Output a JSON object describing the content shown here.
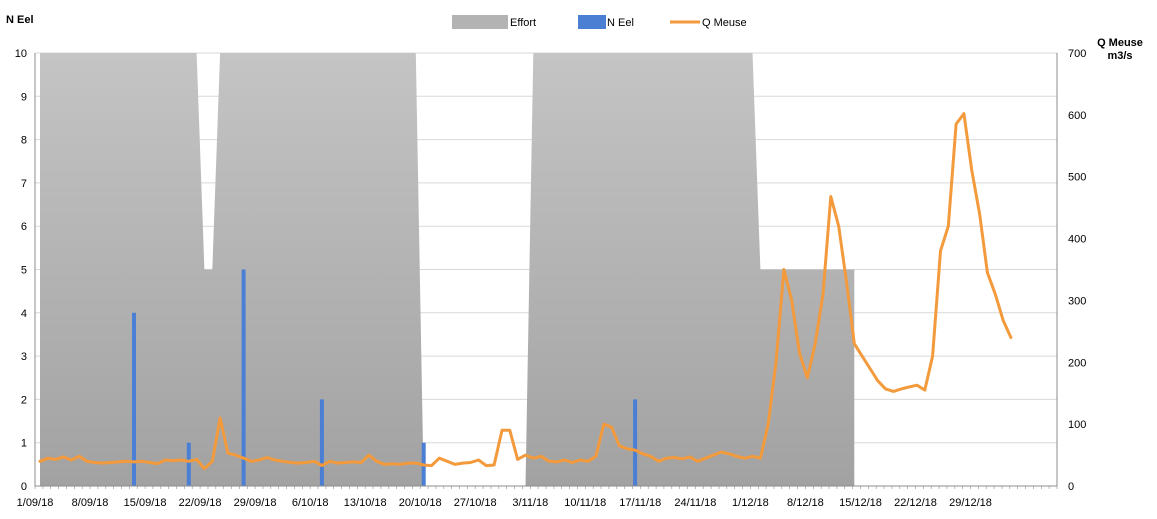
{
  "chart_data": {
    "type": "combo",
    "x_tick_labels": [
      "1/09/18",
      "8/09/18",
      "15/09/18",
      "22/09/18",
      "29/09/18",
      "6/10/18",
      "13/10/18",
      "20/10/18",
      "27/10/18",
      "3/11/18",
      "10/11/18",
      "17/11/18",
      "24/11/18",
      "1/12/18",
      "8/12/18",
      "15/12/18",
      "22/12/18",
      "29/12/18"
    ],
    "x_range": [
      "2018-09-01",
      "2018-12-31"
    ],
    "y_left": {
      "label": "N Eel",
      "range": [
        0,
        10
      ],
      "ticks": [
        0,
        1,
        2,
        3,
        4,
        5,
        6,
        7,
        8,
        9,
        10
      ]
    },
    "y_right": {
      "label_line1": "Q Meuse",
      "label_line2": "m3/s",
      "range": [
        0,
        700
      ],
      "ticks": [
        0,
        100,
        200,
        300,
        400,
        500,
        600,
        700
      ]
    },
    "grid": true,
    "legend": {
      "placement": "top",
      "entries": [
        {
          "name": "Effort",
          "kind": "area",
          "color": "#b3b3b3"
        },
        {
          "name": "N Eel",
          "kind": "bar",
          "color": "#4a7fd4"
        },
        {
          "name": "Q Meuse",
          "kind": "line",
          "color": "#f39a3c"
        }
      ]
    },
    "series": [
      {
        "name": "Effort",
        "type": "area",
        "axis": "left",
        "color": "#b3b3b3",
        "points": [
          [
            "2018-09-01",
            10
          ],
          [
            "2018-09-21",
            10
          ],
          [
            "2018-09-22",
            5
          ],
          [
            "2018-09-23",
            5
          ],
          [
            "2018-09-24",
            10
          ],
          [
            "2018-10-19",
            10
          ],
          [
            "2018-10-20",
            0
          ],
          [
            "2018-11-02",
            0
          ],
          [
            "2018-11-03",
            10
          ],
          [
            "2018-12-01",
            10
          ],
          [
            "2018-12-02",
            5
          ],
          [
            "2018-12-14",
            5
          ],
          [
            "2018-12-14",
            0
          ]
        ]
      },
      {
        "name": "N Eel",
        "type": "bar",
        "axis": "left",
        "color": "#4a7fd4",
        "points": [
          [
            "2018-09-13",
            4
          ],
          [
            "2018-09-20",
            1
          ],
          [
            "2018-09-27",
            5
          ],
          [
            "2018-10-07",
            2
          ],
          [
            "2018-10-20",
            1
          ],
          [
            "2018-11-16",
            2
          ]
        ]
      },
      {
        "name": "Q Meuse",
        "type": "line",
        "axis": "right",
        "color": "#f39a3c",
        "points": [
          [
            "2018-09-01",
            40
          ],
          [
            "2018-09-02",
            45
          ],
          [
            "2018-09-03",
            43
          ],
          [
            "2018-09-04",
            47
          ],
          [
            "2018-09-05",
            42
          ],
          [
            "2018-09-06",
            48
          ],
          [
            "2018-09-07",
            40
          ],
          [
            "2018-09-08",
            38
          ],
          [
            "2018-09-09",
            37
          ],
          [
            "2018-09-10",
            38
          ],
          [
            "2018-09-11",
            39
          ],
          [
            "2018-09-12",
            40
          ],
          [
            "2018-09-13",
            39
          ],
          [
            "2018-09-14",
            40
          ],
          [
            "2018-09-15",
            38
          ],
          [
            "2018-09-16",
            36
          ],
          [
            "2018-09-17",
            42
          ],
          [
            "2018-09-18",
            41
          ],
          [
            "2018-09-19",
            42
          ],
          [
            "2018-09-20",
            40
          ],
          [
            "2018-09-21",
            43
          ],
          [
            "2018-09-22",
            28
          ],
          [
            "2018-09-23",
            40
          ],
          [
            "2018-09-24",
            110
          ],
          [
            "2018-09-25",
            53
          ],
          [
            "2018-09-26",
            50
          ],
          [
            "2018-09-27",
            45
          ],
          [
            "2018-09-28",
            40
          ],
          [
            "2018-09-29",
            42
          ],
          [
            "2018-09-30",
            46
          ],
          [
            "2018-10-01",
            42
          ],
          [
            "2018-10-02",
            40
          ],
          [
            "2018-10-03",
            38
          ],
          [
            "2018-10-04",
            37
          ],
          [
            "2018-10-05",
            38
          ],
          [
            "2018-10-06",
            40
          ],
          [
            "2018-10-07",
            33
          ],
          [
            "2018-10-08",
            40
          ],
          [
            "2018-10-09",
            37
          ],
          [
            "2018-10-10",
            38
          ],
          [
            "2018-10-11",
            39
          ],
          [
            "2018-10-12",
            38
          ],
          [
            "2018-10-13",
            50
          ],
          [
            "2018-10-14",
            40
          ],
          [
            "2018-10-15",
            35
          ],
          [
            "2018-10-16",
            36
          ],
          [
            "2018-10-17",
            35
          ],
          [
            "2018-10-18",
            37
          ],
          [
            "2018-10-19",
            37
          ],
          [
            "2018-10-20",
            34
          ],
          [
            "2018-10-21",
            33
          ],
          [
            "2018-10-22",
            45
          ],
          [
            "2018-10-23",
            40
          ],
          [
            "2018-10-24",
            35
          ],
          [
            "2018-10-25",
            37
          ],
          [
            "2018-10-26",
            38
          ],
          [
            "2018-10-27",
            42
          ],
          [
            "2018-10-28",
            33
          ],
          [
            "2018-10-29",
            34
          ],
          [
            "2018-10-30",
            90
          ],
          [
            "2018-10-31",
            90
          ],
          [
            "2018-11-01",
            43
          ],
          [
            "2018-11-02",
            50
          ],
          [
            "2018-11-03",
            45
          ],
          [
            "2018-11-04",
            48
          ],
          [
            "2018-11-05",
            40
          ],
          [
            "2018-11-06",
            39
          ],
          [
            "2018-11-07",
            42
          ],
          [
            "2018-11-08",
            38
          ],
          [
            "2018-11-09",
            42
          ],
          [
            "2018-11-10",
            40
          ],
          [
            "2018-11-11",
            48
          ],
          [
            "2018-11-12",
            100
          ],
          [
            "2018-11-13",
            95
          ],
          [
            "2018-11-14",
            65
          ],
          [
            "2018-11-15",
            60
          ],
          [
            "2018-11-16",
            58
          ],
          [
            "2018-11-17",
            52
          ],
          [
            "2018-11-18",
            48
          ],
          [
            "2018-11-19",
            40
          ],
          [
            "2018-11-20",
            45
          ],
          [
            "2018-11-21",
            46
          ],
          [
            "2018-11-22",
            44
          ],
          [
            "2018-11-23",
            47
          ],
          [
            "2018-11-24",
            40
          ],
          [
            "2018-11-25",
            45
          ],
          [
            "2018-11-26",
            50
          ],
          [
            "2018-11-27",
            55
          ],
          [
            "2018-11-28",
            52
          ],
          [
            "2018-11-29",
            48
          ],
          [
            "2018-11-30",
            45
          ],
          [
            "2018-12-01",
            48
          ],
          [
            "2018-12-02",
            45
          ],
          [
            "2018-12-03",
            100
          ],
          [
            "2018-12-04",
            200
          ],
          [
            "2018-12-05",
            350
          ],
          [
            "2018-12-06",
            300
          ],
          [
            "2018-12-07",
            215
          ],
          [
            "2018-12-08",
            175
          ],
          [
            "2018-12-09",
            230
          ],
          [
            "2018-12-10",
            310
          ],
          [
            "2018-12-11",
            468
          ],
          [
            "2018-12-12",
            420
          ],
          [
            "2018-12-13",
            330
          ],
          [
            "2018-12-14",
            230
          ],
          [
            "2018-12-15",
            210
          ],
          [
            "2018-12-16",
            190
          ],
          [
            "2018-12-17",
            170
          ],
          [
            "2018-12-18",
            157
          ],
          [
            "2018-12-19",
            153
          ],
          [
            "2018-12-20",
            157
          ],
          [
            "2018-12-21",
            160
          ],
          [
            "2018-12-22",
            163
          ],
          [
            "2018-12-23",
            155
          ],
          [
            "2018-12-24",
            210
          ],
          [
            "2018-12-25",
            380
          ],
          [
            "2018-12-26",
            420
          ],
          [
            "2018-12-27",
            585
          ],
          [
            "2018-12-28",
            602
          ],
          [
            "2018-12-29",
            510
          ],
          [
            "2018-12-30",
            440
          ],
          [
            "2018-12-31",
            345
          ],
          [
            "2019-01-01",
            310
          ],
          [
            "2019-01-02",
            268
          ],
          [
            "2019-01-03",
            240
          ]
        ]
      }
    ]
  }
}
